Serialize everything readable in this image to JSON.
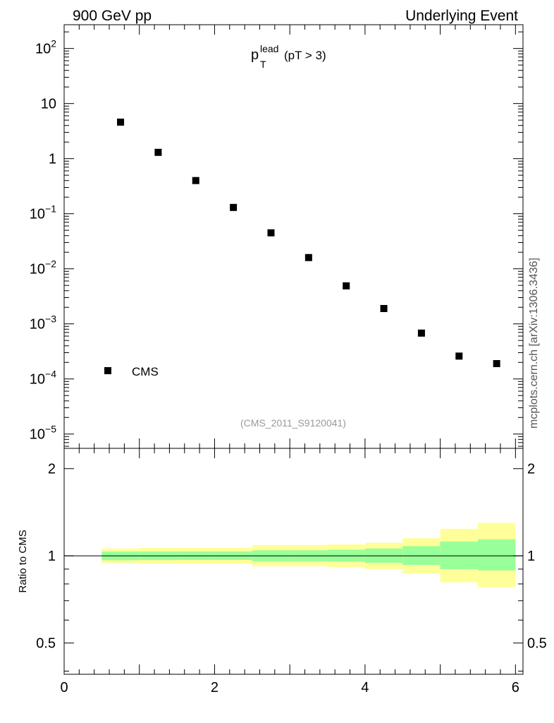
{
  "header": {
    "left": "900 GeV pp",
    "right": "Underlying Event"
  },
  "side_label": "mcplots.cern.ch [arXiv:1306.3436]",
  "plot_title": {
    "symbol": "p",
    "sub": "T",
    "sup": "lead",
    "tail": "(pT >  3)"
  },
  "watermark": "(CMS_2011_S9120041)",
  "legend": {
    "label": "CMS"
  },
  "chart_data": [
    {
      "type": "scatter",
      "y_scale": "log",
      "xlim": [
        0,
        6.1
      ],
      "ylim": [
        5.5e-06,
        270
      ],
      "y_ticks": [
        {
          "value": 100,
          "base": "10",
          "exp": "2"
        },
        {
          "value": 10,
          "base": "10",
          "exp": ""
        },
        {
          "value": 1,
          "base": "1",
          "exp": ""
        },
        {
          "value": 0.1,
          "base": "10",
          "exp": "−1"
        },
        {
          "value": 0.01,
          "base": "10",
          "exp": "−2"
        },
        {
          "value": 0.001,
          "base": "10",
          "exp": "−3"
        },
        {
          "value": 0.0001,
          "base": "10",
          "exp": "−4"
        },
        {
          "value": 1e-05,
          "base": "10",
          "exp": "−5"
        }
      ],
      "series": [
        {
          "name": "CMS",
          "marker": "square",
          "color": "#000000",
          "x": [
            0.75,
            1.25,
            1.75,
            2.25,
            2.75,
            3.25,
            3.75,
            4.25,
            4.75,
            5.25,
            5.75
          ],
          "y": [
            4.6,
            1.3,
            0.4,
            0.13,
            0.045,
            0.016,
            0.0049,
            0.0019,
            0.00068,
            0.00026,
            0.00019
          ]
        }
      ]
    },
    {
      "type": "area",
      "ylabel": "Ratio to CMS",
      "y_scale": "log",
      "xlim": [
        0,
        6.1
      ],
      "ylim": [
        0.39,
        2.35
      ],
      "x_ticks": [
        "0",
        "2",
        "4",
        "6"
      ],
      "y_ticks": [
        {
          "value": 2,
          "label": "2"
        },
        {
          "value": 1,
          "label": "1"
        },
        {
          "value": 0.5,
          "label": "0.5"
        }
      ],
      "reference_line": 1,
      "bands": {
        "x_edges": [
          0.5,
          1.0,
          1.5,
          2.0,
          2.5,
          3.0,
          3.5,
          4.0,
          4.5,
          5.0,
          5.5,
          6.0
        ],
        "inner": {
          "color": "#99ff99",
          "low": [
            0.965,
            0.967,
            0.968,
            0.968,
            0.958,
            0.958,
            0.955,
            0.945,
            0.93,
            0.9,
            0.89
          ],
          "high": [
            1.035,
            1.035,
            1.035,
            1.035,
            1.045,
            1.045,
            1.05,
            1.06,
            1.08,
            1.12,
            1.14
          ]
        },
        "outer": {
          "color": "#ffff99",
          "low": [
            0.945,
            0.94,
            0.94,
            0.94,
            0.92,
            0.92,
            0.915,
            0.9,
            0.87,
            0.81,
            0.78
          ],
          "high": [
            1.06,
            1.065,
            1.065,
            1.065,
            1.09,
            1.09,
            1.095,
            1.11,
            1.15,
            1.24,
            1.3
          ]
        }
      }
    }
  ]
}
